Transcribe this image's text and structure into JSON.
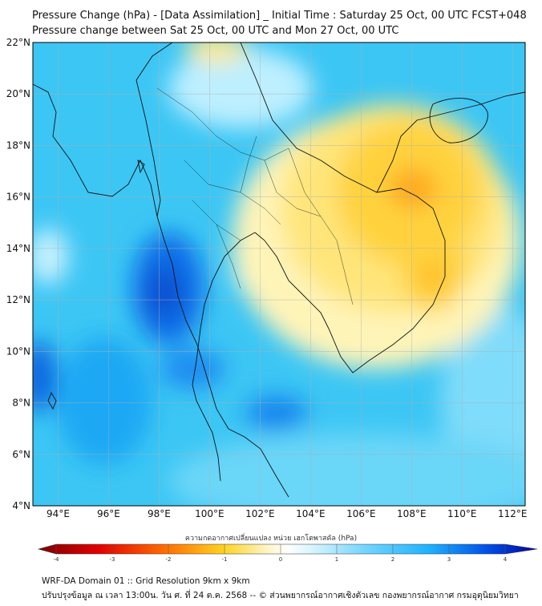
{
  "header": {
    "title": "Pressure Change (hPa) - [Data Assimilation] _ Initial Time : Saturday 25 Oct, 00 UTC FCST+048",
    "subtitle": "Pressure change between Sat 25 Oct, 00 UTC and Mon 27 Oct, 00 UTC"
  },
  "map": {
    "lat_labels": [
      "22°N",
      "20°N",
      "18°N",
      "16°N",
      "14°N",
      "12°N",
      "10°N",
      "8°N",
      "6°N",
      "4°N"
    ],
    "lon_labels": [
      "94°E",
      "96°E",
      "98°E",
      "100°E",
      "102°E",
      "104°E",
      "106°E",
      "108°E",
      "110°E",
      "112°E"
    ],
    "lat_range": [
      4,
      22
    ],
    "lon_range": [
      93,
      112.5
    ]
  },
  "colorbar": {
    "title": "ความกดอากาศเปลี่ยนแปลง หน่วย เฮกโตพาสคัล (hPa)",
    "ticks": [
      "-4",
      "-3",
      "-2",
      "-1",
      "0",
      "1",
      "2",
      "3",
      "4"
    ],
    "range": [
      -4,
      4
    ],
    "colors": {
      "neg_strong": "#7a0000",
      "neg_mid": "#ff2a00",
      "neg_weak": "#ffd21f",
      "zero": "#ffffff",
      "pos_weak": "#b8ecff",
      "pos_mid": "#1fb4ff",
      "pos_strong": "#0000a0"
    }
  },
  "footer": {
    "line1": "WRF-DA Domain 01 :: Grid Resolution 9km x 9km",
    "line2": "ปรับปรุงข้อมูล ณ เวลา 13:00น. วัน ศ. ที่ 24 ต.ค. 2568 -- © ส่วนพยากรณ์อากาศเชิงตัวเลข กองพยากรณ์อากาศ กรมอุตุนิยมวิทยา"
  }
}
